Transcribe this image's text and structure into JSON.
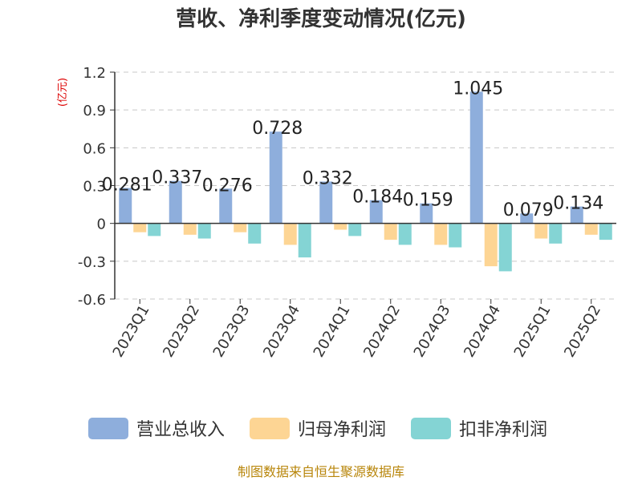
{
  "chart_data": {
    "type": "bar",
    "title": "营收、净利季度变动情况(亿元)",
    "unit_label": "(亿元)",
    "categories": [
      "2023Q1",
      "2023Q2",
      "2023Q3",
      "2023Q4",
      "2024Q1",
      "2024Q2",
      "2024Q3",
      "2024Q4",
      "2025Q1",
      "2025Q2"
    ],
    "series": [
      {
        "name": "营业总收入",
        "color": "#8eaedc",
        "values": [
          0.281,
          0.337,
          0.276,
          0.728,
          0.332,
          0.184,
          0.159,
          1.045,
          0.079,
          0.134
        ]
      },
      {
        "name": "归母净利润",
        "color": "#fdd594",
        "values": [
          -0.07,
          -0.09,
          -0.07,
          -0.17,
          -0.05,
          -0.13,
          -0.17,
          -0.34,
          -0.12,
          -0.09
        ]
      },
      {
        "name": "扣非净利润",
        "color": "#84d4d4",
        "values": [
          -0.1,
          -0.12,
          -0.16,
          -0.27,
          -0.1,
          -0.17,
          -0.19,
          -0.38,
          -0.16,
          -0.13
        ]
      }
    ],
    "data_labels": [
      "0.281",
      "0.337",
      "0.276",
      "0.728",
      "0.332",
      "0.184",
      "0.159",
      "1.045",
      "0.079",
      "0.134"
    ],
    "ylim": [
      -0.6,
      1.2
    ],
    "yticks": [
      1.2,
      0.9,
      0.6,
      0.3,
      0,
      -0.3,
      -0.6
    ],
    "ytick_labels": [
      "1.2",
      "0.9",
      "0.6",
      "0.3",
      "0",
      "-0.3",
      "-0.6"
    ],
    "grid": "horizontal-dashed",
    "legend": "bottom"
  },
  "source": "制图数据来自恒生聚源数据库"
}
